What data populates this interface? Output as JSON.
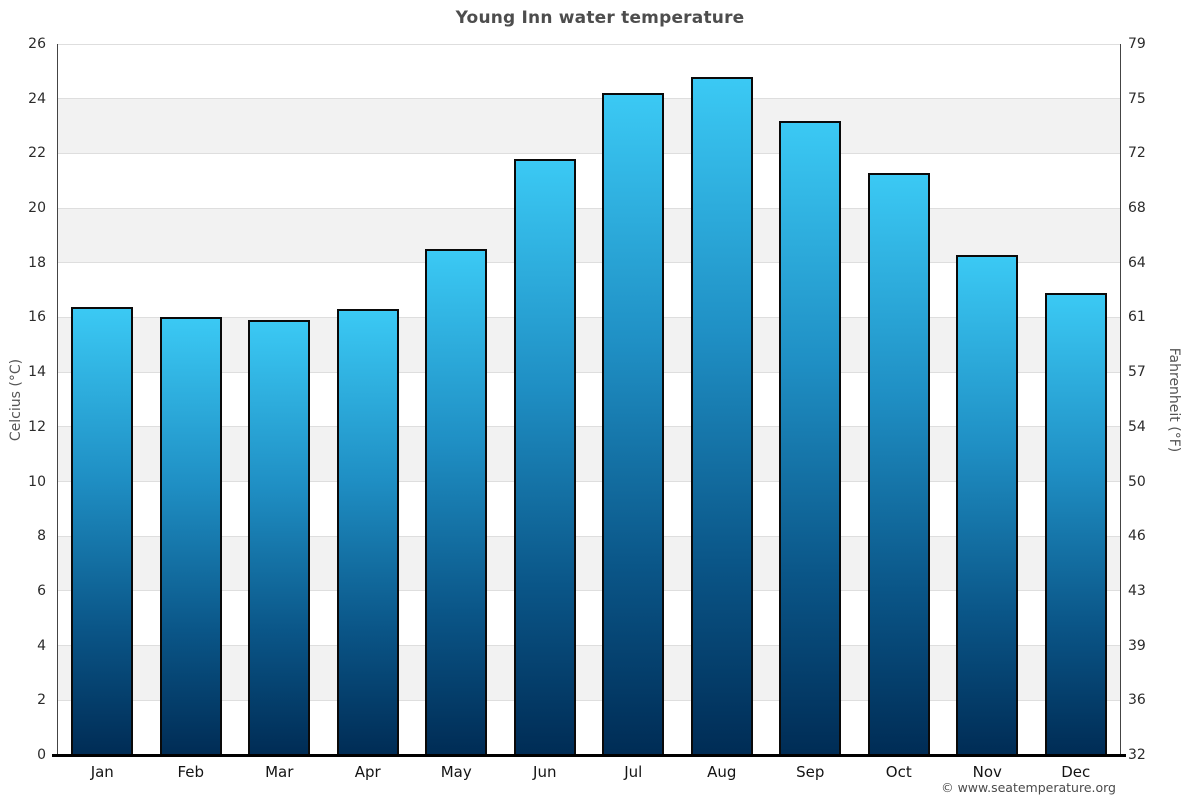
{
  "title": "Young Inn water temperature",
  "footer": "© www.seatemperature.org",
  "chart_data": {
    "type": "bar",
    "title": "Young Inn water temperature",
    "categories": [
      "Jan",
      "Feb",
      "Mar",
      "Apr",
      "May",
      "Jun",
      "Jul",
      "Aug",
      "Sep",
      "Oct",
      "Nov",
      "Dec"
    ],
    "values": [
      16.4,
      16.0,
      15.9,
      16.3,
      18.5,
      21.8,
      24.2,
      24.8,
      23.2,
      21.3,
      18.3,
      16.9
    ],
    "xlabel": "",
    "ylabel_left": "Celcius (°C)",
    "ylabel_right": "Fahrenheit (°F)",
    "ylim": [
      0,
      26
    ],
    "y_left_ticks": [
      0,
      2,
      4,
      6,
      8,
      10,
      12,
      14,
      16,
      18,
      20,
      22,
      24,
      26
    ],
    "y_right_ticks": [
      32,
      36,
      39,
      43,
      46,
      50,
      54,
      57,
      61,
      64,
      68,
      72,
      75,
      79
    ],
    "grid": "zebra-horizontal-bands",
    "legend": "none"
  },
  "colors": {
    "bar_gradient_top": "#3bc9f4",
    "bar_gradient_mid": "#1f8fc4",
    "bar_gradient_low": "#0a5587",
    "bar_gradient_bottom": "#002c55",
    "bar_border": "#0a0a0a",
    "band_gray": "#f2f2f2",
    "gridline": "#dedede",
    "spine": "#444444",
    "baseline": "#000000",
    "title_text": "#4d4d4d",
    "tick_text": "#2b2b2b",
    "month_text": "#141414",
    "axis_title_text": "#555555",
    "footer_text": "#4a4a4a"
  }
}
